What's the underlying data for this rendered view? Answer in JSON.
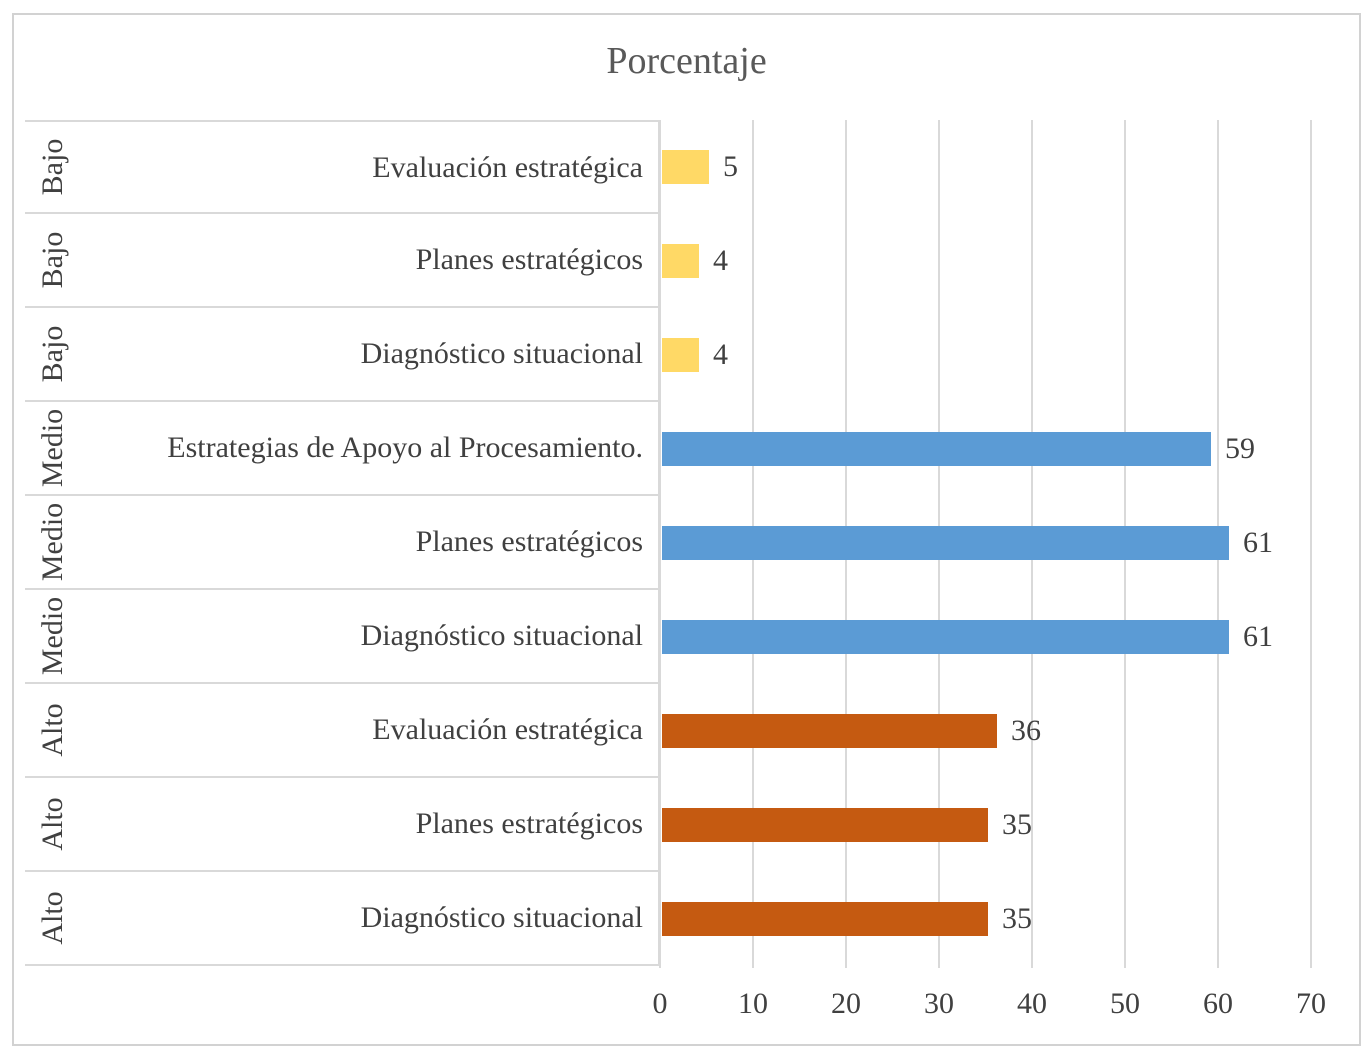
{
  "chart": {
    "title": "Porcentaje"
  },
  "chart_data": {
    "type": "bar",
    "orientation": "horizontal",
    "title": "Porcentaje",
    "xlabel": "",
    "ylabel": "",
    "xlim": [
      0,
      70
    ],
    "x_ticks": [
      0,
      10,
      20,
      30,
      40,
      50,
      60,
      70
    ],
    "grid": true,
    "legend": false,
    "data_labels": true,
    "axis_levels": [
      "group",
      "category"
    ],
    "groups": [
      {
        "name": "Bajo",
        "color": "#FFD966"
      },
      {
        "name": "Medio",
        "color": "#5B9BD5"
      },
      {
        "name": "Alto",
        "color": "#C55A11"
      }
    ],
    "rows": [
      {
        "group": "Bajo",
        "category": "Evaluación estratégica",
        "value": 5
      },
      {
        "group": "Bajo",
        "category": "Planes estratégicos",
        "value": 4
      },
      {
        "group": "Bajo",
        "category": "Diagnóstico situacional",
        "value": 4
      },
      {
        "group": "Medio",
        "category": "Estrategias de Apoyo al Procesamiento.",
        "value": 59
      },
      {
        "group": "Medio",
        "category": "Planes estratégicos",
        "value": 61
      },
      {
        "group": "Medio",
        "category": "Diagnóstico situacional",
        "value": 61
      },
      {
        "group": "Alto",
        "category": "Evaluación estratégica",
        "value": 36
      },
      {
        "group": "Alto",
        "category": "Planes estratégicos",
        "value": 35
      },
      {
        "group": "Alto",
        "category": "Diagnóstico situacional",
        "value": 35
      }
    ],
    "colors": {
      "grid": "#D9D9D9",
      "border": "#D2D2D2",
      "text": "#404040",
      "title_text": "#595959"
    }
  }
}
